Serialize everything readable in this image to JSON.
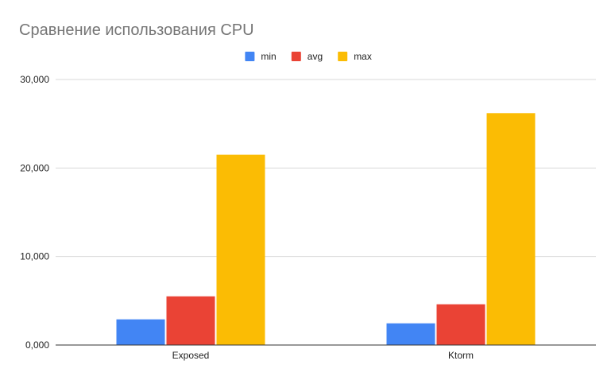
{
  "chart_data": {
    "type": "bar",
    "title": "Сравнение использования CPU",
    "xlabel": "",
    "ylabel": "",
    "categories": [
      "Exposed",
      "Ktorm"
    ],
    "series": [
      {
        "name": "min",
        "color": "#4285F4",
        "values": [
          2900,
          2450
        ]
      },
      {
        "name": "avg",
        "color": "#EA4335",
        "values": [
          5500,
          4600
        ]
      },
      {
        "name": "max",
        "color": "#FBBC04",
        "values": [
          21500,
          26200
        ]
      }
    ],
    "ylim": [
      0,
      30000
    ],
    "yticks": [
      0,
      10000,
      20000,
      30000
    ],
    "ytick_labels": [
      "0,000",
      "10,000",
      "20,000",
      "30,000"
    ],
    "grid": true,
    "legend_position": "top-center"
  }
}
